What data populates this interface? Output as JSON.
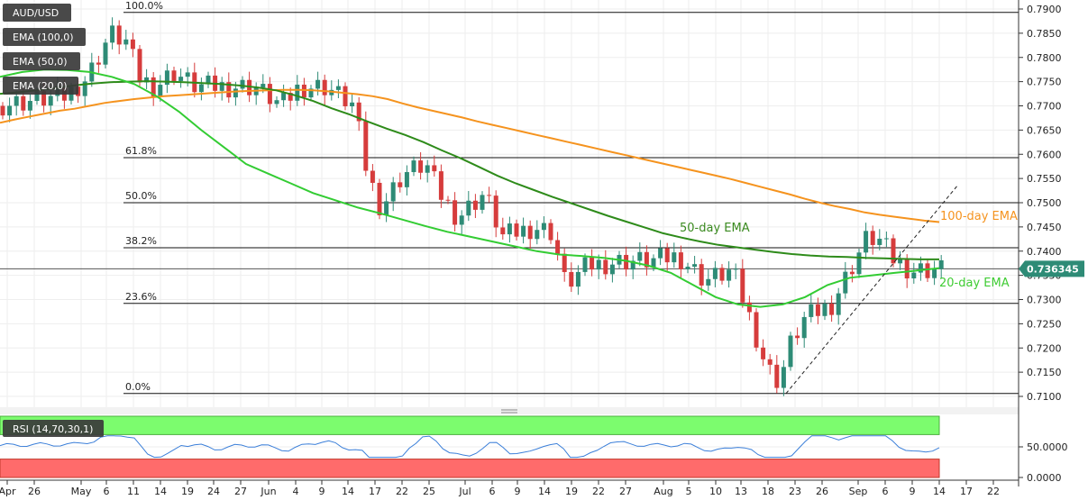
{
  "chart_data": {
    "type": "candlestick",
    "symbol": "AUD/USD",
    "price_axis": {
      "range": [
        0.7085,
        0.7915
      ],
      "ticks": [
        "0.7900",
        "0.7850",
        "0.7800",
        "0.7750",
        "0.7700",
        "0.7650",
        "0.7600",
        "0.7550",
        "0.7500",
        "0.7450",
        "0.7400",
        "0.7350",
        "0.7300",
        "0.7250",
        "0.7200",
        "0.7150",
        "0.7100"
      ],
      "current_price_label": "0.736345",
      "current_price": 0.736345
    },
    "date_axis": {
      "labels": [
        "Apr",
        "26",
        "May",
        "6",
        "11",
        "14",
        "19",
        "24",
        "27",
        "Jun",
        "4",
        "9",
        "14",
        "17",
        "22",
        "25",
        "Jul",
        "6",
        "9",
        "14",
        "19",
        "22",
        "27",
        "Aug",
        "5",
        "10",
        "13",
        "18",
        "23",
        "26",
        "Sep",
        "6",
        "9",
        "14",
        "17",
        "22"
      ]
    },
    "fibonacci": [
      {
        "label": "100.0%",
        "value": 0.7893
      },
      {
        "label": "61.8%",
        "value": 0.7593
      },
      {
        "label": "50.0%",
        "value": 0.75
      },
      {
        "label": "38.2%",
        "value": 0.7407
      },
      {
        "label": "23.6%",
        "value": 0.7292
      },
      {
        "label": "0.0%",
        "value": 0.7106
      }
    ],
    "legend": [
      {
        "name": "AUD/USD",
        "color": "#3a3a3a"
      },
      {
        "name": "EMA (100,0)",
        "color": "#3a3a3a"
      },
      {
        "name": "EMA (50,0)",
        "color": "#3a3a3a"
      },
      {
        "name": "EMA (20,0)",
        "color": "#3a3a3a"
      }
    ],
    "annotations": [
      {
        "text": "100-day EMA",
        "color": "#f5931e"
      },
      {
        "text": "50-day EMA",
        "color": "#3a8a1f"
      },
      {
        "text": "20-day EMA",
        "color": "#3fcc33"
      }
    ],
    "series_colors": {
      "ema100": "#f5931e",
      "ema50": "#2e8b1a",
      "ema20": "#33cc33",
      "bull": "#2e8b76",
      "bear": "#d63c3c",
      "rsi": "#3b7fd9"
    },
    "ema100": [
      0.7665,
      0.7672,
      0.7678,
      0.7684,
      0.769,
      0.7694,
      0.77,
      0.7706,
      0.771,
      0.7714,
      0.7717,
      0.772,
      0.7722,
      0.7724,
      0.7726,
      0.7728,
      0.773,
      0.7731,
      0.7732,
      0.7733,
      0.7733,
      0.7732,
      0.773,
      0.7727,
      0.7724,
      0.772,
      0.7714,
      0.7705,
      0.7697,
      0.769,
      0.7683,
      0.7676,
      0.7668,
      0.7661,
      0.7654,
      0.7647,
      0.764,
      0.7633,
      0.7626,
      0.7619,
      0.7612,
      0.7605,
      0.7598,
      0.7591,
      0.7584,
      0.7577,
      0.757,
      0.7563,
      0.7556,
      0.7549,
      0.7541,
      0.7533,
      0.7525,
      0.7517,
      0.7508,
      0.75,
      0.7493,
      0.7487,
      0.748,
      0.7475,
      0.7471,
      0.7467,
      0.7463,
      0.746
    ],
    "ema50": [
      0.7725,
      0.7728,
      0.7732,
      0.7737,
      0.7742,
      0.7746,
      0.7749,
      0.775,
      0.7751,
      0.775,
      0.7749,
      0.7747,
      0.7745,
      0.7742,
      0.7738,
      0.7732,
      0.7722,
      0.771,
      0.7695,
      0.7682,
      0.7667,
      0.7653,
      0.764,
      0.7625,
      0.7608,
      0.7592,
      0.7574,
      0.7556,
      0.754,
      0.7526,
      0.7512,
      0.7499,
      0.7486,
      0.7473,
      0.7461,
      0.7449,
      0.7437,
      0.7428,
      0.742,
      0.7413,
      0.7408,
      0.7403,
      0.7398,
      0.7394,
      0.7391,
      0.7389,
      0.7388,
      0.7386,
      0.7385,
      0.7384,
      0.7383,
      0.7383
    ],
    "ema20": [
      0.776,
      0.777,
      0.7775,
      0.7774,
      0.777,
      0.776,
      0.7745,
      0.772,
      0.7688,
      0.765,
      0.7615,
      0.758,
      0.756,
      0.754,
      0.752,
      0.7505,
      0.749,
      0.7478,
      0.7465,
      0.7452,
      0.744,
      0.743,
      0.742,
      0.741,
      0.74,
      0.7393,
      0.739,
      0.7386,
      0.738,
      0.737,
      0.7355,
      0.733,
      0.7305,
      0.729,
      0.7285,
      0.729,
      0.7305,
      0.733,
      0.7345,
      0.735,
      0.7355,
      0.736,
      0.7365
    ],
    "rsi": {
      "label": "RSI (14,70,30,1)",
      "range": [
        0,
        100
      ],
      "ticks": [
        "50.0000",
        "0.0000"
      ],
      "overbought": 70,
      "oversold": 30
    }
  }
}
